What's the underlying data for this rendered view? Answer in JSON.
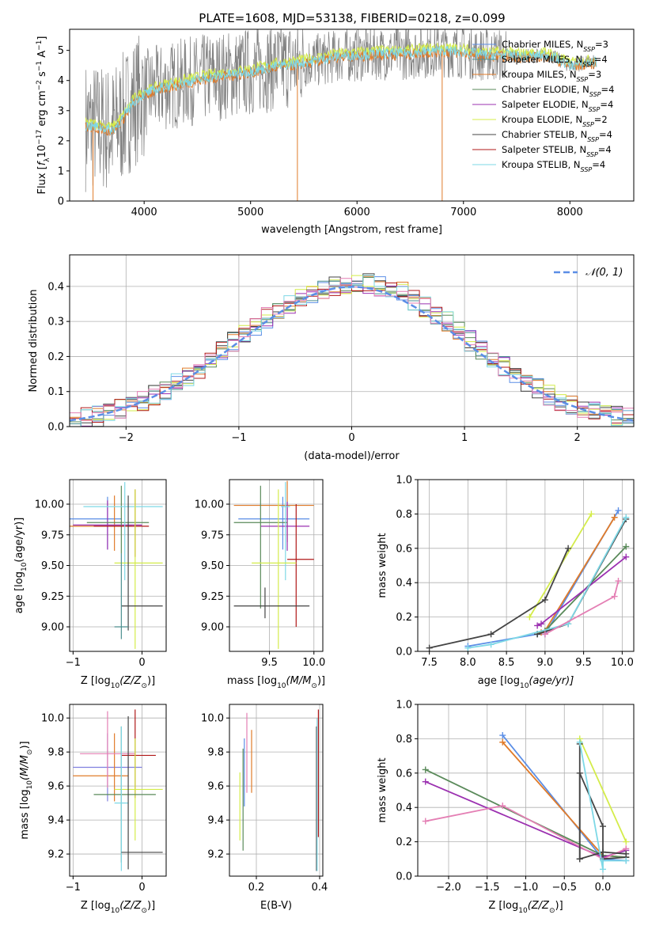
{
  "title": "PLATE=1608, MJD=53138, FIBERID=0218, z=0.099",
  "colors": {
    "Chabrier MILES": "#5b8ee6",
    "Salpeter MILES": "#4d8f8f",
    "Kroupa MILES": "#e07b2a",
    "Chabrier ELODIE": "#5a8a5a",
    "Salpeter ELODIE": "#9b30b0",
    "Kroupa ELODIE": "#d4ec4a",
    "Chabrier STELIB": "#444444",
    "Salpeter STELIB": "#b01818",
    "Kroupa STELIB": "#7ed8e6",
    "extra": "#e47fb4",
    "extra2": "#7f7fdf"
  },
  "chart_data": [
    {
      "type": "line",
      "id": "spectrum",
      "title": "PLATE=1608, MJD=53138, FIBERID=0218, z=0.099",
      "xlabel": "wavelength [Angstrom, rest frame]",
      "ylabel_parts": [
        "Flux [",
        "f",
        "λ",
        "10",
        "−17",
        " erg cm",
        "−2",
        " s",
        "−1",
        " A",
        "−1",
        "]"
      ],
      "xlim": [
        3300,
        8600
      ],
      "ylim": [
        0,
        5.7
      ],
      "xticks": [
        4000,
        5000,
        6000,
        7000,
        8000
      ],
      "yticks": [
        0,
        1,
        2,
        3,
        4,
        5
      ],
      "continuum": {
        "x": [
          3450,
          3600,
          3700,
          3800,
          3900,
          4000,
          4200,
          4400,
          4600,
          4800,
          5000,
          5200,
          5400,
          5600,
          5800,
          6000,
          6200,
          6400,
          6600,
          6800,
          7000,
          7200,
          7400,
          7600,
          7800,
          8000,
          8200
        ],
        "y": [
          2.5,
          2.45,
          2.35,
          2.75,
          3.3,
          3.55,
          3.8,
          3.95,
          4.1,
          4.2,
          4.3,
          4.45,
          4.55,
          4.65,
          4.8,
          4.85,
          4.9,
          4.9,
          4.95,
          5.0,
          4.95,
          4.85,
          4.85,
          4.8,
          4.85,
          4.5,
          4.6
        ]
      },
      "legend": [
        {
          "name": "Chabrier MILES",
          "n": "3"
        },
        {
          "name": "Salpeter MILES",
          "n": "4"
        },
        {
          "name": "Kroupa MILES",
          "n": "3"
        },
        {
          "name": "Chabrier ELODIE",
          "n": "4"
        },
        {
          "name": "Salpeter ELODIE",
          "n": "4"
        },
        {
          "name": "Kroupa ELODIE",
          "n": "2"
        },
        {
          "name": "Chabrier STELIB",
          "n": "4"
        },
        {
          "name": "Salpeter STELIB",
          "n": "4"
        },
        {
          "name": "Kroupa STELIB",
          "n": "4"
        }
      ],
      "legend_n_label": "N",
      "legend_n_sub": "SSP",
      "legend_placement": "right"
    },
    {
      "type": "line",
      "id": "residuals",
      "xlabel": "(data-model)/error",
      "ylabel": "Normed distribution",
      "xlim": [
        -2.5,
        2.5
      ],
      "ylim": [
        0,
        0.49
      ],
      "xticks": [
        -2,
        -1,
        0,
        1,
        2
      ],
      "yticks": [
        0.0,
        0.1,
        0.2,
        0.3,
        0.4
      ],
      "grid": true,
      "legend": "𝒩(0, 1)",
      "legend_placement": "top-right",
      "hist_centers": [
        -2.45,
        -2.35,
        -2.25,
        -2.15,
        -2.05,
        -1.95,
        -1.85,
        -1.75,
        -1.65,
        -1.55,
        -1.45,
        -1.35,
        -1.25,
        -1.15,
        -1.05,
        -0.95,
        -0.85,
        -0.75,
        -0.65,
        -0.55,
        -0.45,
        -0.35,
        -0.25,
        -0.15,
        -0.05,
        0.05,
        0.15,
        0.25,
        0.35,
        0.45,
        0.55,
        0.65,
        0.75,
        0.85,
        0.95,
        1.05,
        1.15,
        1.25,
        1.35,
        1.45,
        1.55,
        1.65,
        1.75,
        1.85,
        1.95,
        2.05,
        2.15,
        2.25,
        2.35,
        2.45
      ],
      "hist_base": [
        0.02,
        0.025,
        0.03,
        0.04,
        0.05,
        0.06,
        0.075,
        0.09,
        0.105,
        0.125,
        0.145,
        0.165,
        0.19,
        0.215,
        0.24,
        0.265,
        0.29,
        0.31,
        0.33,
        0.35,
        0.37,
        0.38,
        0.395,
        0.4,
        0.405,
        0.41,
        0.41,
        0.4,
        0.395,
        0.385,
        0.36,
        0.34,
        0.32,
        0.3,
        0.27,
        0.245,
        0.22,
        0.195,
        0.17,
        0.15,
        0.13,
        0.11,
        0.09,
        0.075,
        0.06,
        0.05,
        0.04,
        0.035,
        0.03,
        0.025
      ]
    },
    {
      "type": "scatter",
      "id": "age-vs-Z",
      "xlabel_parts": [
        "Z [log",
        "10",
        "(Z/Z",
        "⊙",
        ")]"
      ],
      "ylabel": "age  [log10(age/yr)]",
      "xlim": [
        -1.05,
        0.35
      ],
      "ylim": [
        8.8,
        10.2
      ],
      "xticks": [
        -1,
        0
      ],
      "yticks": [
        9.0,
        9.25,
        9.5,
        9.75,
        10.0
      ],
      "grid": true,
      "errorbars": [
        {
          "color": "Chabrier MILES",
          "x": -0.5,
          "xerr": [
            0.95,
            0.2
          ],
          "y": 9.88,
          "yerr": [
            0.25,
            0.18
          ]
        },
        {
          "color": "Kroupa MILES",
          "x": -0.4,
          "xerr": [
            0.95,
            0.25
          ],
          "y": 9.82,
          "yerr": [
            0.2,
            0.25
          ]
        },
        {
          "color": "Salpeter ELODIE",
          "x": -0.5,
          "xerr": [
            0.5,
            0.5
          ],
          "y": 9.83,
          "yerr": [
            0.2,
            0.2
          ]
        },
        {
          "color": "Chabrier ELODIE",
          "x": -0.3,
          "xerr": [
            0.5,
            0.4
          ],
          "y": 9.85,
          "yerr": [
            0.25,
            0.3
          ]
        },
        {
          "color": "Salpeter STELIB",
          "x": -0.1,
          "xerr": [
            0.6,
            0.2
          ],
          "y": 9.82,
          "yerr": [
            0.25,
            0.3
          ]
        },
        {
          "color": "Kroupa STELIB",
          "x": -0.25,
          "xerr": [
            0.6,
            0.55
          ],
          "y": 9.98,
          "yerr": [
            0.6,
            0.2
          ]
        },
        {
          "color": "Kroupa ELODIE",
          "x": -0.1,
          "xerr": [
            0.3,
            0.4
          ],
          "y": 9.52,
          "yerr": [
            0.7,
            0.6
          ]
        },
        {
          "color": "Chabrier STELIB",
          "x": -0.2,
          "xerr": [
            0.1,
            0.5
          ],
          "y": 9.17,
          "yerr": [
            0.2,
            0.9
          ]
        },
        {
          "color": "Salpeter MILES",
          "x": -0.3,
          "xerr": [
            0.1,
            0.1
          ],
          "y": 9.0,
          "yerr": [
            0.1,
            0.6
          ]
        }
      ]
    },
    {
      "type": "scatter",
      "id": "age-vs-mass",
      "xlabel_parts": [
        "mass [log",
        "10",
        "(M/M",
        "⊙",
        ")]"
      ],
      "ylabel": "",
      "xlim": [
        9.05,
        10.1
      ],
      "ylim": [
        8.8,
        10.2
      ],
      "xticks": [
        9.5,
        10.0
      ],
      "yticks": [
        9.0,
        9.25,
        9.5,
        9.75,
        10.0
      ],
      "grid": true,
      "errorbars": [
        {
          "color": "Chabrier MILES",
          "x": 9.65,
          "xerr": [
            0.5,
            0.3
          ],
          "y": 9.88,
          "yerr": [
            0.25,
            0.18
          ]
        },
        {
          "color": "Kroupa MILES",
          "x": 9.7,
          "xerr": [
            0.6,
            0.3
          ],
          "y": 9.99,
          "yerr": [
            0.3,
            0.2
          ]
        },
        {
          "color": "Salpeter ELODIE",
          "x": 9.7,
          "xerr": [
            0.3,
            0.25
          ],
          "y": 9.82,
          "yerr": [
            0.2,
            0.2
          ]
        },
        {
          "color": "Chabrier ELODIE",
          "x": 9.4,
          "xerr": [
            0.3,
            0.3
          ],
          "y": 9.85,
          "yerr": [
            0.7,
            0.3
          ]
        },
        {
          "color": "Salpeter STELIB",
          "x": 9.8,
          "xerr": [
            0.1,
            0.2
          ],
          "y": 9.55,
          "yerr": [
            0.55,
            0.45
          ]
        },
        {
          "color": "Kroupa STELIB",
          "x": 9.68,
          "xerr": [
            0.05,
            0.05
          ],
          "y": 9.98,
          "yerr": [
            0.6,
            0.2
          ]
        },
        {
          "color": "Kroupa ELODIE",
          "x": 9.6,
          "xerr": [
            0.3,
            0.2
          ],
          "y": 9.52,
          "yerr": [
            0.7,
            0.6
          ]
        },
        {
          "color": "Chabrier STELIB",
          "x": 9.45,
          "xerr": [
            0.35,
            0.5
          ],
          "y": 9.17,
          "yerr": [
            0.1,
            0.15
          ]
        }
      ]
    },
    {
      "type": "line",
      "id": "mass-weight-vs-age",
      "xlabel_parts": [
        "age  [log",
        "10",
        "(age/yr)]"
      ],
      "ylabel": "mass weight",
      "xlim": [
        7.35,
        10.15
      ],
      "ylim": [
        0,
        1.0
      ],
      "xticks": [
        7.5,
        8.0,
        8.5,
        9.0,
        9.5,
        10.0
      ],
      "yticks": [
        0.0,
        0.2,
        0.4,
        0.6,
        0.8,
        1.0
      ],
      "grid": true,
      "series": [
        {
          "color": "Chabrier MILES",
          "x": [
            8.0,
            8.9,
            9.0,
            9.95
          ],
          "y": [
            0.03,
            0.1,
            0.1,
            0.82
          ]
        },
        {
          "color": "Kroupa MILES",
          "x": [
            8.95,
            9.0,
            9.9
          ],
          "y": [
            0.11,
            0.12,
            0.78
          ]
        },
        {
          "color": "Chabrier ELODIE",
          "x": [
            8.9,
            9.0,
            10.05
          ],
          "y": [
            0.1,
            0.12,
            0.61
          ]
        },
        {
          "color": "Salpeter ELODIE",
          "x": [
            8.9,
            8.95,
            10.05
          ],
          "y": [
            0.15,
            0.16,
            0.55
          ]
        },
        {
          "color": "Kroupa ELODIE",
          "x": [
            8.8,
            9.6
          ],
          "y": [
            0.2,
            0.8
          ]
        },
        {
          "color": "Chabrier STELIB",
          "x": [
            7.5,
            8.3,
            9.0,
            9.3
          ],
          "y": [
            0.02,
            0.1,
            0.3,
            0.6
          ]
        },
        {
          "color": "Chabrier STELIB",
          "x": [
            8.9,
            9.3,
            10.05
          ],
          "y": [
            0.1,
            0.16,
            0.77
          ]
        },
        {
          "color": "Kroupa STELIB",
          "x": [
            8.0,
            8.3,
            9.3,
            10.05
          ],
          "y": [
            0.02,
            0.04,
            0.16,
            0.78
          ]
        },
        {
          "color": "extra",
          "x": [
            9.0,
            9.9,
            9.95
          ],
          "y": [
            0.1,
            0.32,
            0.41
          ]
        }
      ]
    },
    {
      "type": "scatter",
      "id": "mass-vs-Z",
      "xlabel_parts": [
        "Z [log",
        "10",
        "(Z/Z",
        "⊙",
        ")]"
      ],
      "ylabel": "mass [log10(M/M⊙)]",
      "xlim": [
        -1.05,
        0.35
      ],
      "ylim": [
        9.07,
        10.08
      ],
      "xticks": [
        -1,
        0
      ],
      "yticks": [
        9.2,
        9.4,
        9.6,
        9.8,
        10.0
      ],
      "grid": true,
      "errorbars": [
        {
          "color": "extra2",
          "x": -0.5,
          "xerr": [
            0.5,
            0.5
          ],
          "y": 9.71,
          "yerr": [
            0.2,
            0.2
          ]
        },
        {
          "color": "Kroupa MILES",
          "x": -0.4,
          "xerr": [
            0.6,
            0.2
          ],
          "y": 9.66,
          "yerr": [
            0.15,
            0.25
          ]
        },
        {
          "color": "extra",
          "x": -0.5,
          "xerr": [
            0.4,
            0.4
          ],
          "y": 9.79,
          "yerr": [
            0.2,
            0.25
          ]
        },
        {
          "color": "Salpeter STELIB",
          "x": -0.1,
          "xerr": [
            0.2,
            0.3
          ],
          "y": 9.78,
          "yerr": [
            0.25,
            0.27
          ]
        },
        {
          "color": "Kroupa ELODIE",
          "x": -0.1,
          "xerr": [
            0.3,
            0.4
          ],
          "y": 9.58,
          "yerr": [
            0.3,
            0.3
          ]
        },
        {
          "color": "Chabrier ELODIE",
          "x": -0.3,
          "xerr": [
            0.4,
            0.5
          ],
          "y": 9.55,
          "yerr": [
            0.4,
            0.4
          ]
        },
        {
          "color": "Kroupa STELIB",
          "x": -0.3,
          "xerr": [
            0.1,
            0.1
          ],
          "y": 9.5,
          "yerr": [
            0.4,
            0.45
          ]
        },
        {
          "color": "Chabrier STELIB",
          "x": -0.2,
          "xerr": [
            0.1,
            0.5
          ],
          "y": 9.21,
          "yerr": [
            0.1,
            0.8
          ]
        }
      ]
    },
    {
      "type": "scatter",
      "id": "mass-vs-EBV",
      "xlabel": "E(B-V)",
      "ylabel": "",
      "xlim": [
        0.115,
        0.41
      ],
      "ylim": [
        9.07,
        10.08
      ],
      "xticks": [
        0.2,
        0.4
      ],
      "yticks": [
        9.2,
        9.4,
        9.6,
        9.8,
        10.0
      ],
      "grid": true,
      "errorbars": [
        {
          "color": "Kroupa ELODIE",
          "x": 0.148,
          "y": 9.48,
          "yerr": [
            0.2,
            0.2
          ]
        },
        {
          "color": "Chabrier ELODIE",
          "x": 0.158,
          "y": 9.5,
          "yerr": [
            0.28,
            0.32
          ]
        },
        {
          "color": "Chabrier MILES",
          "x": 0.162,
          "y": 9.68,
          "yerr": [
            0.2,
            0.2
          ]
        },
        {
          "color": "extra",
          "x": 0.17,
          "y": 9.78,
          "yerr": [
            0.22,
            0.25
          ]
        },
        {
          "color": "Kroupa MILES",
          "x": 0.185,
          "y": 9.66,
          "yerr": [
            0.1,
            0.27
          ]
        },
        {
          "color": "Chabrier STELIB",
          "x": 0.39,
          "y": 9.5,
          "yerr": [
            0.4,
            0.45
          ]
        },
        {
          "color": "Kroupa STELIB",
          "x": 0.392,
          "y": 9.6,
          "yerr": [
            0.5,
            0.4
          ]
        },
        {
          "color": "Salpeter STELIB",
          "x": 0.396,
          "y": 9.7,
          "yerr": [
            0.4,
            0.35
          ]
        }
      ]
    },
    {
      "type": "line",
      "id": "mass-weight-vs-Z",
      "xlabel_parts": [
        "Z [log",
        "10",
        "(Z/Z",
        "⊙",
        ")]"
      ],
      "ylabel": "mass weight",
      "xlim": [
        -2.4,
        0.4
      ],
      "ylim": [
        0,
        1.0
      ],
      "xticks": [
        -2.0,
        -1.5,
        -1.0,
        -0.5,
        0.0
      ],
      "yticks": [
        0.0,
        0.2,
        0.4,
        0.6,
        0.8,
        1.0
      ],
      "grid": true,
      "series": [
        {
          "color": "Chabrier MILES",
          "x": [
            -1.3,
            0.0,
            0.3
          ],
          "y": [
            0.82,
            0.1,
            0.09
          ]
        },
        {
          "color": "Kroupa MILES",
          "x": [
            -1.3,
            0.0,
            0.3
          ],
          "y": [
            0.78,
            0.12,
            0.11
          ]
        },
        {
          "color": "Chabrier ELODIE",
          "x": [
            -2.3,
            0.0,
            0.3
          ],
          "y": [
            0.62,
            0.12,
            0.11
          ]
        },
        {
          "color": "Salpeter ELODIE",
          "x": [
            -2.3,
            0.0,
            0.3
          ],
          "y": [
            0.55,
            0.11,
            0.15
          ]
        },
        {
          "color": "extra",
          "x": [
            -2.3,
            -1.3,
            0.0,
            0.3
          ],
          "y": [
            0.32,
            0.41,
            0.1,
            0.16
          ]
        },
        {
          "color": "Kroupa ELODIE",
          "x": [
            -0.3,
            0.3
          ],
          "y": [
            0.8,
            0.2
          ]
        },
        {
          "color": "Chabrier STELIB",
          "x": [
            -0.3,
            -0.3,
            0.0,
            0.0,
            0.3
          ],
          "y": [
            0.1,
            0.6,
            0.29,
            0.1,
            0.11
          ]
        },
        {
          "color": "Chabrier STELIB",
          "x": [
            -0.3,
            -0.3,
            0.0,
            0.3
          ],
          "y": [
            0.77,
            0.1,
            0.14,
            0.13
          ]
        },
        {
          "color": "Kroupa STELIB",
          "x": [
            -0.3,
            0.0,
            0.0,
            0.3
          ],
          "y": [
            0.78,
            0.04,
            0.09,
            0.09
          ]
        }
      ]
    }
  ]
}
